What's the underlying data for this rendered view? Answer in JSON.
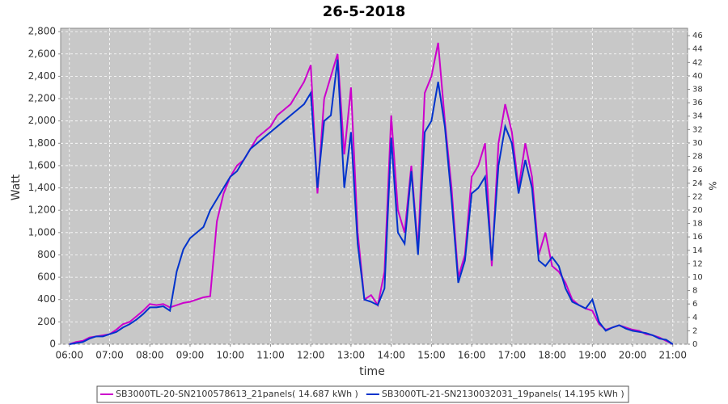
{
  "chart_data": {
    "type": "line",
    "title": "26-5-2018",
    "x_label": "time",
    "y_label": "Watt",
    "y2_label": "%",
    "grid": true,
    "legend": "bottom",
    "xlim": [
      "05:47",
      "21:22"
    ],
    "xticks": [
      "06:00",
      "07:00",
      "08:00",
      "09:00",
      "10:00",
      "11:00",
      "12:00",
      "13:00",
      "14:00",
      "15:00",
      "16:00",
      "17:00",
      "18:00",
      "19:00",
      "20:00",
      "21:00"
    ],
    "ylim": [
      0,
      2830
    ],
    "yticks": [
      0,
      200,
      400,
      600,
      800,
      {
        "value": 1000,
        "label": "1,000"
      },
      {
        "value": 1200,
        "label": "1,200"
      },
      {
        "value": 1400,
        "label": "1,400"
      },
      {
        "value": 1600,
        "label": "1,600"
      },
      {
        "value": 1800,
        "label": "1,800"
      },
      {
        "value": 2000,
        "label": "2,000"
      },
      {
        "value": 2200,
        "label": "2,200"
      },
      {
        "value": 2400,
        "label": "2,400"
      },
      {
        "value": 2600,
        "label": "2,600"
      },
      {
        "value": 2800,
        "label": "2,800"
      }
    ],
    "y2lim": [
      0,
      47.1
    ],
    "y2ticks": [
      0,
      2,
      4,
      6,
      8,
      10,
      12,
      14,
      16,
      18,
      20,
      22,
      24,
      26,
      28,
      30,
      32,
      34,
      36,
      38,
      40,
      42,
      44,
      46
    ],
    "x": [
      "06:00",
      "06:10",
      "06:20",
      "06:30",
      "06:40",
      "06:50",
      "07:00",
      "07:10",
      "07:20",
      "07:30",
      "07:40",
      "07:50",
      "08:00",
      "08:10",
      "08:20",
      "08:30",
      "08:40",
      "08:50",
      "09:00",
      "09:10",
      "09:20",
      "09:30",
      "09:40",
      "09:50",
      "10:00",
      "10:10",
      "10:20",
      "10:30",
      "10:40",
      "10:50",
      "11:00",
      "11:10",
      "11:20",
      "11:30",
      "11:40",
      "11:50",
      "12:00",
      "12:10",
      "12:20",
      "12:30",
      "12:40",
      "12:50",
      "13:00",
      "13:10",
      "13:20",
      "13:30",
      "13:40",
      "13:50",
      "14:00",
      "14:10",
      "14:20",
      "14:30",
      "14:40",
      "14:50",
      "15:00",
      "15:10",
      "15:20",
      "15:30",
      "15:40",
      "15:50",
      "16:00",
      "16:10",
      "16:20",
      "16:30",
      "16:40",
      "16:50",
      "17:00",
      "17:10",
      "17:20",
      "17:30",
      "17:40",
      "17:50",
      "18:00",
      "18:10",
      "18:20",
      "18:30",
      "18:40",
      "18:50",
      "19:00",
      "19:10",
      "19:20",
      "19:30",
      "19:40",
      "19:50",
      "20:00",
      "20:10",
      "20:20",
      "20:30",
      "20:40",
      "20:50",
      "21:00"
    ],
    "series": [
      {
        "name": "SB3000TL-20-SN2100578613_21panels( 14.687 kWh )",
        "color": "#cc00cc",
        "values": [
          0,
          20,
          30,
          60,
          70,
          80,
          90,
          130,
          180,
          200,
          250,
          300,
          360,
          350,
          360,
          330,
          350,
          370,
          380,
          400,
          420,
          430,
          1100,
          1350,
          1500,
          1600,
          1650,
          1750,
          1850,
          1900,
          1950,
          2050,
          2100,
          2150,
          2250,
          2350,
          2500,
          1350,
          2200,
          2400,
          2600,
          1700,
          2300,
          1000,
          400,
          440,
          350,
          650,
          2050,
          1200,
          1000,
          1600,
          850,
          2250,
          2400,
          2700,
          2000,
          1400,
          600,
          800,
          1500,
          1600,
          1800,
          700,
          1800,
          2150,
          1900,
          1400,
          1800,
          1500,
          800,
          1000,
          700,
          650,
          550,
          400,
          350,
          320,
          300,
          180,
          130,
          150,
          170,
          150,
          130,
          120,
          90,
          80,
          60,
          30,
          0
        ]
      },
      {
        "name": "SB3000TL-21-SN2130032031_19panels( 14.195 kWh )",
        "color": "#0033cc",
        "values": [
          0,
          10,
          20,
          50,
          70,
          70,
          90,
          110,
          150,
          180,
          220,
          270,
          330,
          330,
          340,
          300,
          650,
          850,
          950,
          1000,
          1050,
          1200,
          1300,
          1400,
          1500,
          1550,
          1650,
          1750,
          1800,
          1850,
          1900,
          1950,
          2000,
          2050,
          2100,
          2150,
          2250,
          1400,
          2000,
          2050,
          2550,
          1400,
          1900,
          900,
          400,
          380,
          350,
          500,
          1850,
          1000,
          900,
          1550,
          800,
          1900,
          2000,
          2350,
          1950,
          1300,
          550,
          750,
          1350,
          1400,
          1500,
          750,
          1600,
          1950,
          1800,
          1350,
          1650,
          1400,
          750,
          700,
          780,
          700,
          500,
          380,
          350,
          320,
          400,
          200,
          120,
          150,
          170,
          140,
          120,
          110,
          100,
          80,
          50,
          40,
          0
        ]
      }
    ]
  }
}
